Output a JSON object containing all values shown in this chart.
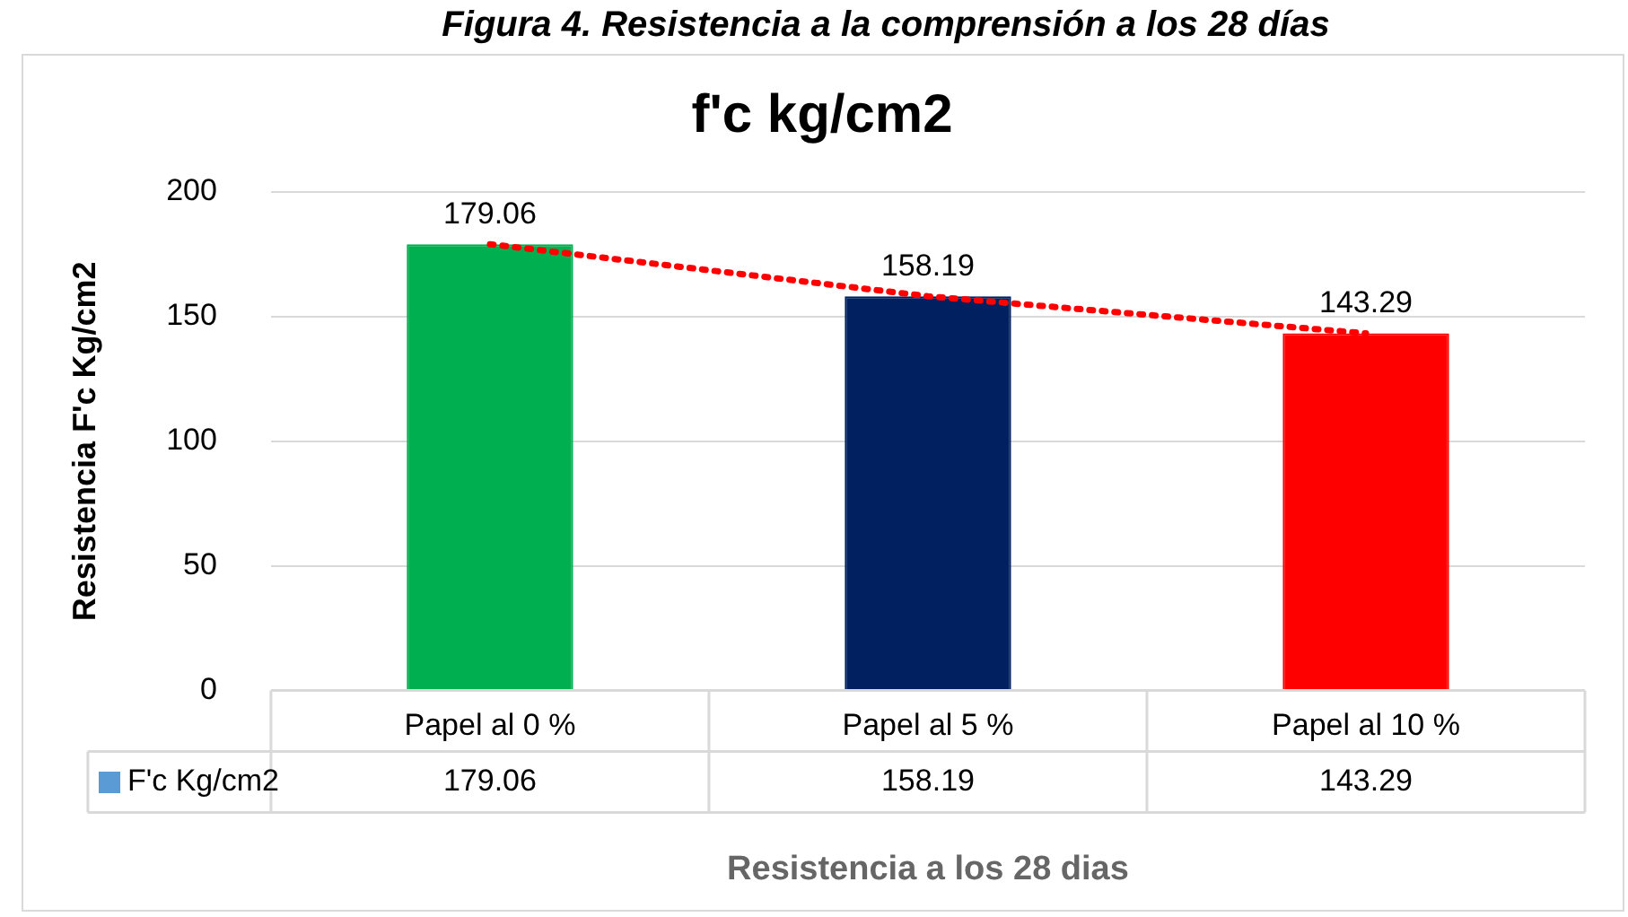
{
  "chart_data": {
    "type": "bar",
    "title": "f'c kg/cm2",
    "xlabel": "Resistencia a los 28 dias",
    "ylabel": "Resistencia F'c Kg/cm2",
    "annotations": [
      "Figura 4. Resistencia a la comprensión a los 28 días"
    ],
    "categories": [
      "Papel al 0 %",
      "Papel al 5 %",
      "Papel al 10 %"
    ],
    "series": [
      {
        "name": "F'c Kg/cm2",
        "color": "#5b9bd5",
        "colors": [
          "#00b050",
          "#002060",
          "#ff0000"
        ],
        "values": [
          179.06,
          158.19,
          143.29
        ]
      },
      {
        "type": "line",
        "color": "#ff0000",
        "line_style": "dotted",
        "marker": "none",
        "values": [
          179.06,
          158.19,
          143.29
        ]
      }
    ],
    "ylim": [
      0,
      200
    ],
    "yticks": [
      0,
      50,
      100,
      150,
      200
    ],
    "grid": "y",
    "data_labels": true
  }
}
